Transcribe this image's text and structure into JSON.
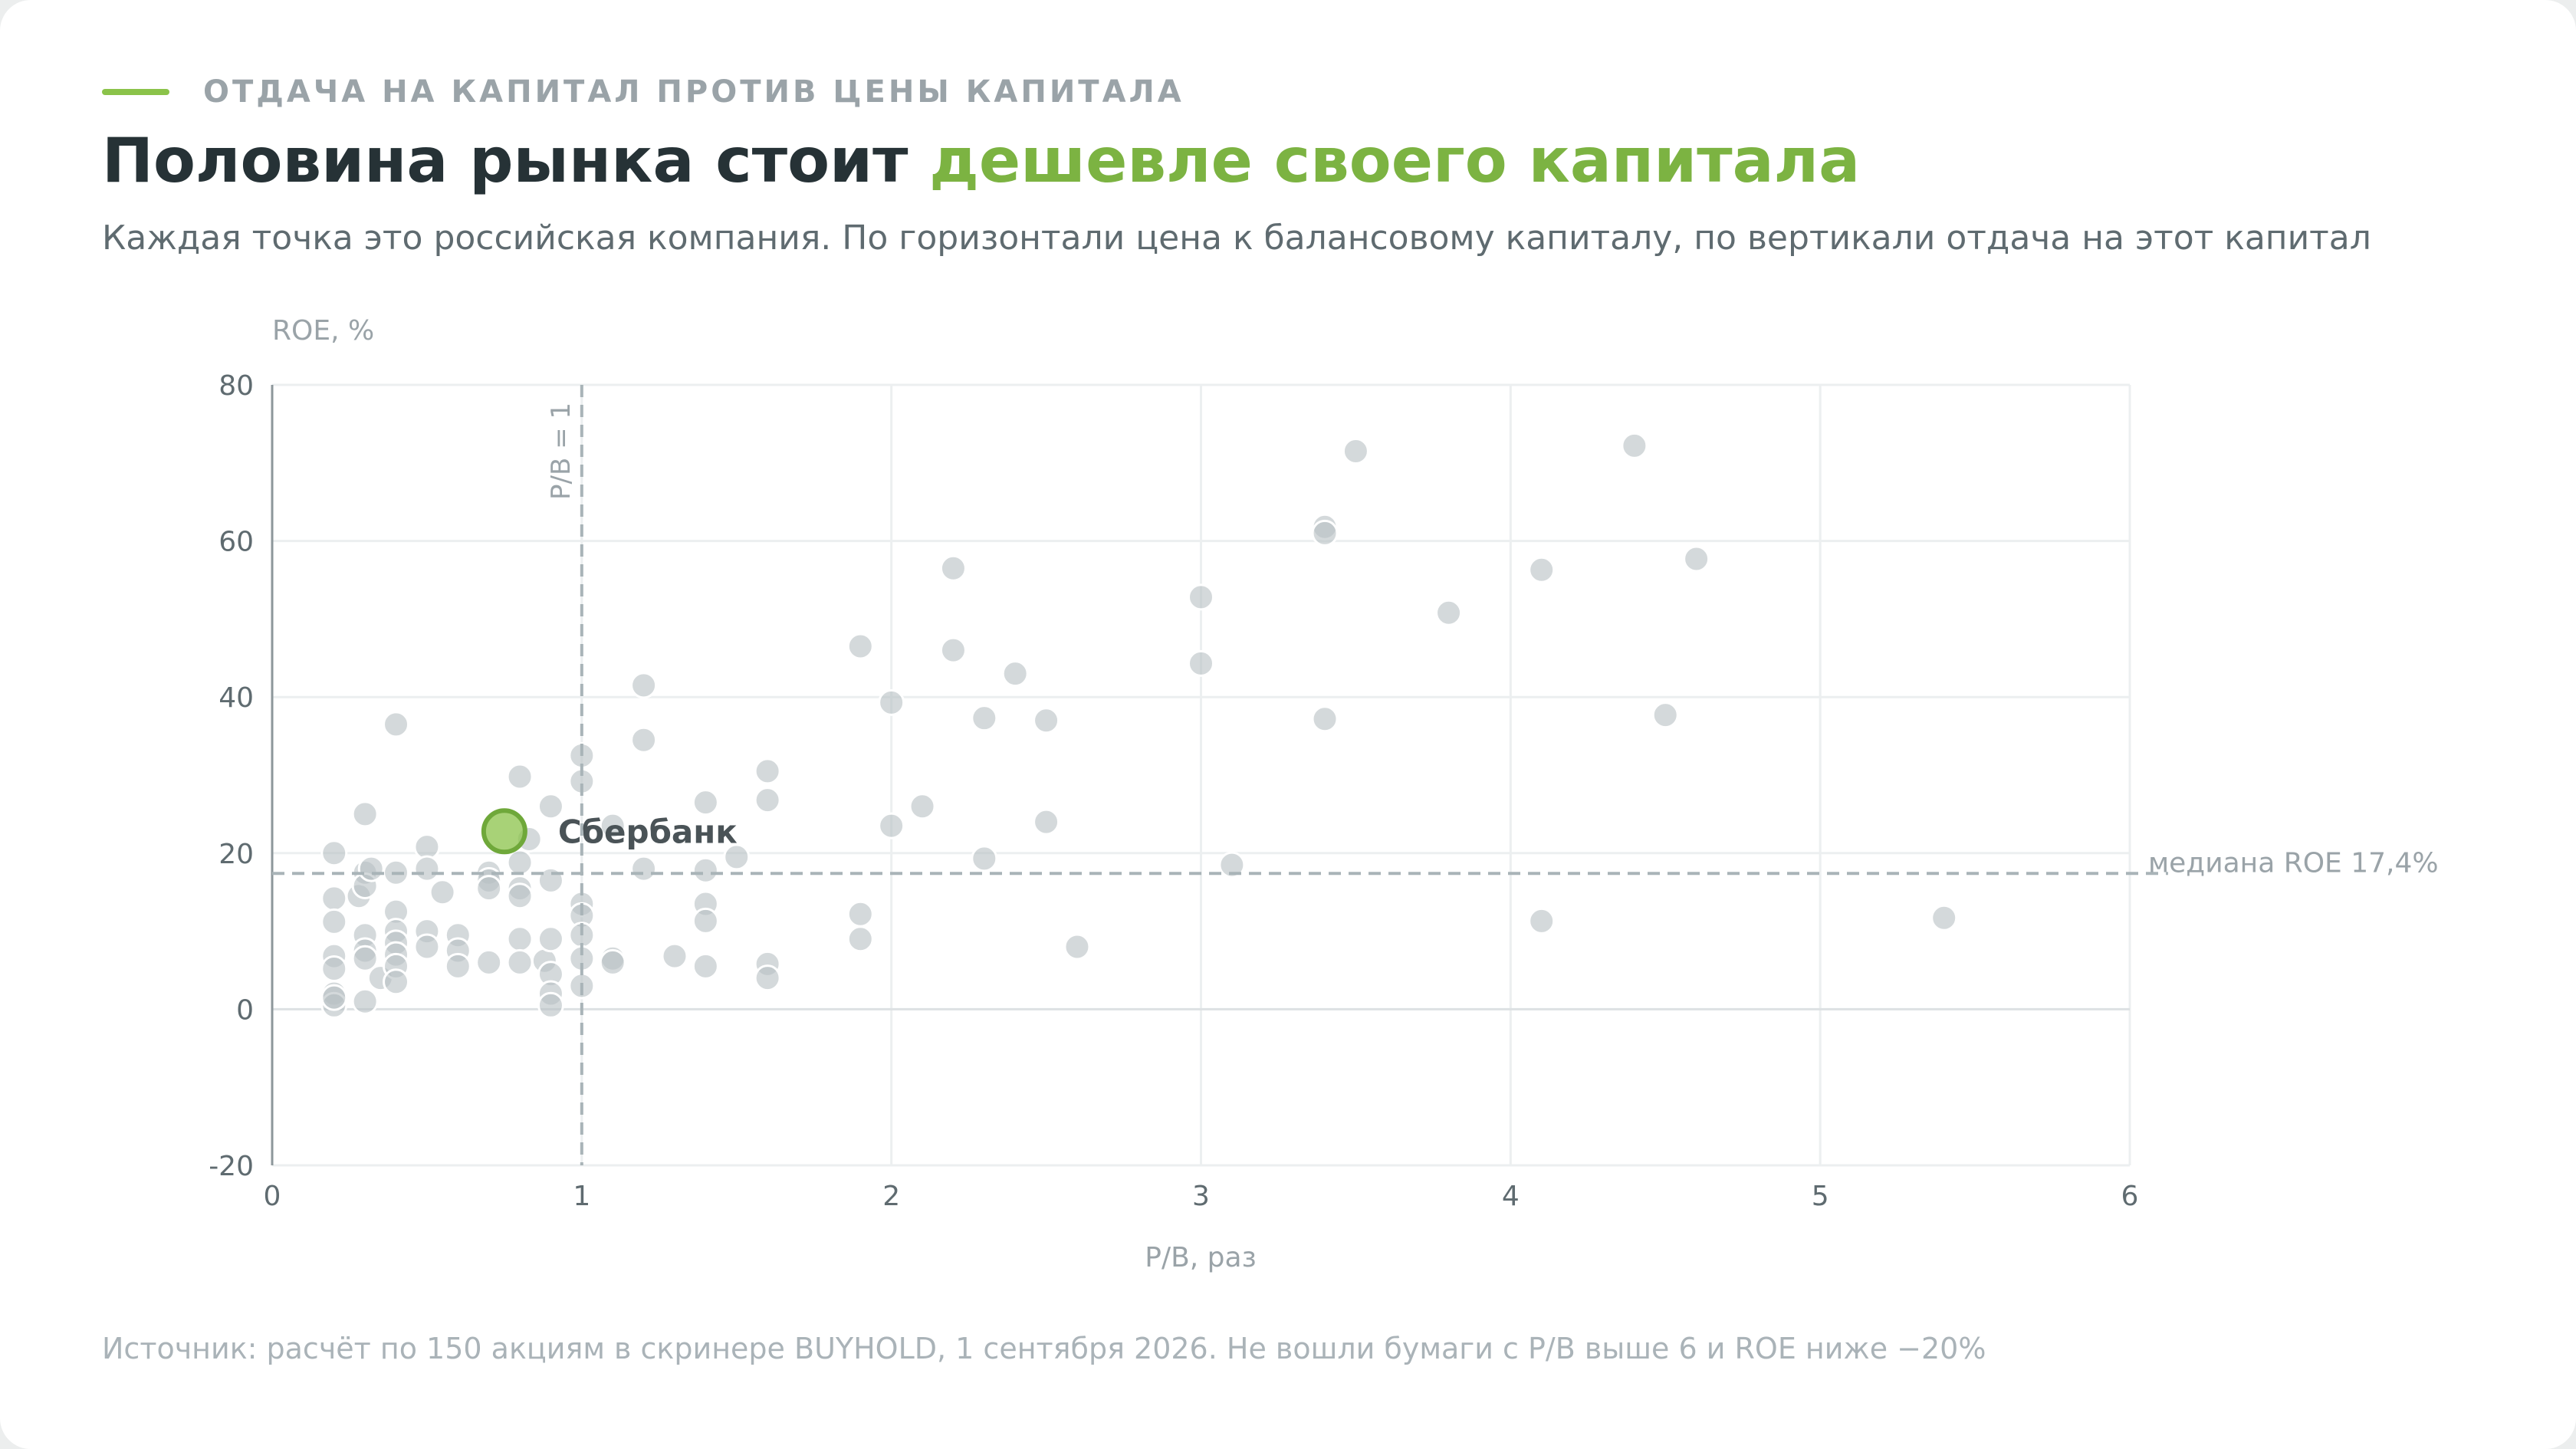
{
  "header": {
    "kicker": "ОТДАЧА НА КАПИТАЛ ПРОТИВ ЦЕНЫ КАПИТАЛА",
    "title_main": "Половина рынка стоит ",
    "title_accent": "дешевле своего капитала",
    "subtitle": "Каждая точка это российская компания. По горизонтали цена к балансовому капиталу, по вертикали отдача на этот капитал"
  },
  "footer": {
    "source": "Источник: расчёт по 150 акциям в скринере BUYHOLD, 1 сентября 2026. Не вошли бумаги с P/B выше 6 и ROE ниже −20%"
  },
  "colors": {
    "accent": "#7cb342",
    "accent_line": "#8bc34a",
    "point": "#c9d0d2",
    "title": "#263236"
  },
  "chart_data": {
    "type": "scatter",
    "xlabel": "P/B, раз",
    "ylabel": "ROE, %",
    "xlim": [
      0,
      6
    ],
    "ylim": [
      -20,
      80
    ],
    "x_ticks": [
      "0",
      "1",
      "2",
      "3",
      "4",
      "5",
      "6"
    ],
    "y_ticks": [
      "-20",
      "0",
      "20",
      "40",
      "60",
      "80"
    ],
    "grid": true,
    "reference_lines": [
      {
        "axis": "x",
        "value": 1,
        "label": "P/B = 1"
      },
      {
        "axis": "y",
        "value": 17.4,
        "label": "медиана ROE 17,4%"
      }
    ],
    "highlight": {
      "label": "Сбербанк",
      "x": 0.75,
      "y": 22.8
    },
    "points": [
      [
        0.2,
        20.0
      ],
      [
        0.2,
        14.2
      ],
      [
        0.2,
        11.2
      ],
      [
        0.2,
        6.8
      ],
      [
        0.2,
        5.2
      ],
      [
        0.2,
        2.0
      ],
      [
        0.2,
        0.5
      ],
      [
        0.2,
        1.5
      ],
      [
        0.28,
        14.5
      ],
      [
        0.3,
        25.0
      ],
      [
        0.3,
        17.5
      ],
      [
        0.3,
        15.8
      ],
      [
        0.3,
        9.5
      ],
      [
        0.3,
        7.5
      ],
      [
        0.3,
        6.5
      ],
      [
        0.3,
        1.0
      ],
      [
        0.32,
        18.0
      ],
      [
        0.35,
        4.0
      ],
      [
        0.4,
        36.5
      ],
      [
        0.4,
        17.5
      ],
      [
        0.4,
        12.5
      ],
      [
        0.4,
        10.0
      ],
      [
        0.4,
        8.5
      ],
      [
        0.4,
        7.0
      ],
      [
        0.4,
        5.5
      ],
      [
        0.4,
        3.5
      ],
      [
        0.5,
        20.8
      ],
      [
        0.5,
        18.0
      ],
      [
        0.5,
        10.0
      ],
      [
        0.5,
        8.0
      ],
      [
        0.55,
        15.0
      ],
      [
        0.6,
        9.5
      ],
      [
        0.6,
        7.5
      ],
      [
        0.6,
        5.5
      ],
      [
        0.7,
        17.5
      ],
      [
        0.7,
        16.5
      ],
      [
        0.7,
        15.5
      ],
      [
        0.7,
        6.0
      ],
      [
        0.8,
        29.8
      ],
      [
        0.8,
        18.8
      ],
      [
        0.8,
        15.5
      ],
      [
        0.8,
        14.5
      ],
      [
        0.8,
        9.0
      ],
      [
        0.8,
        6.0
      ],
      [
        0.83,
        21.8
      ],
      [
        0.88,
        6.2
      ],
      [
        0.9,
        26.0
      ],
      [
        0.9,
        16.5
      ],
      [
        0.9,
        9.0
      ],
      [
        0.9,
        4.5
      ],
      [
        0.9,
        2.0
      ],
      [
        0.9,
        0.5
      ],
      [
        1.0,
        32.5
      ],
      [
        1.0,
        29.2
      ],
      [
        1.0,
        13.5
      ],
      [
        1.0,
        12.0
      ],
      [
        1.0,
        9.5
      ],
      [
        1.0,
        6.5
      ],
      [
        1.0,
        3.0
      ],
      [
        1.1,
        23.5
      ],
      [
        1.1,
        6.5
      ],
      [
        1.1,
        6.0
      ],
      [
        1.2,
        41.5
      ],
      [
        1.2,
        34.5
      ],
      [
        1.2,
        18.0
      ],
      [
        1.3,
        6.8
      ],
      [
        1.4,
        26.5
      ],
      [
        1.4,
        17.8
      ],
      [
        1.4,
        13.5
      ],
      [
        1.4,
        11.3
      ],
      [
        1.4,
        5.5
      ],
      [
        1.5,
        19.5
      ],
      [
        1.6,
        30.5
      ],
      [
        1.6,
        26.8
      ],
      [
        1.6,
        5.8
      ],
      [
        1.6,
        4.0
      ],
      [
        1.9,
        46.5
      ],
      [
        1.9,
        12.2
      ],
      [
        1.9,
        9.0
      ],
      [
        2.0,
        39.3
      ],
      [
        2.0,
        23.5
      ],
      [
        2.1,
        26.0
      ],
      [
        2.2,
        56.5
      ],
      [
        2.2,
        46.0
      ],
      [
        2.3,
        37.3
      ],
      [
        2.3,
        19.3
      ],
      [
        2.4,
        43.0
      ],
      [
        2.5,
        37.0
      ],
      [
        2.5,
        24.0
      ],
      [
        2.6,
        8.0
      ],
      [
        3.0,
        52.8
      ],
      [
        3.0,
        44.3
      ],
      [
        3.1,
        18.5
      ],
      [
        3.4,
        61.8
      ],
      [
        3.4,
        61.0
      ],
      [
        3.4,
        37.2
      ],
      [
        3.5,
        71.5
      ],
      [
        3.8,
        50.8
      ],
      [
        4.1,
        56.3
      ],
      [
        4.1,
        11.3
      ],
      [
        4.4,
        72.2
      ],
      [
        4.5,
        37.7
      ],
      [
        4.6,
        57.7
      ],
      [
        5.4,
        11.7
      ]
    ]
  }
}
